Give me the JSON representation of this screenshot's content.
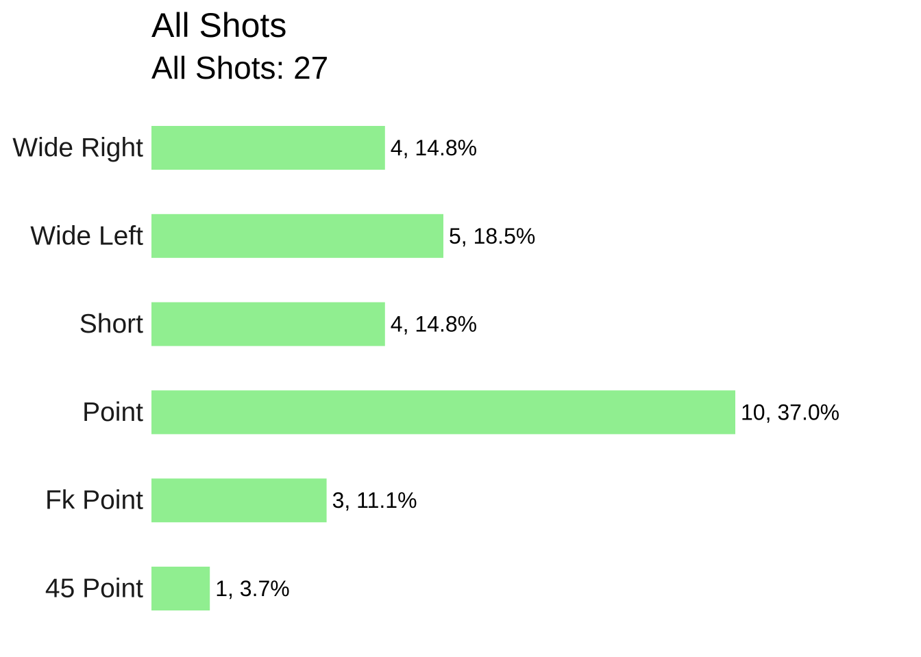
{
  "chart_data": {
    "type": "bar",
    "orientation": "horizontal",
    "title": "All Shots",
    "subtitle": "All Shots: 27",
    "xlabel": "",
    "ylabel": "",
    "grid": false,
    "axes_visible": false,
    "bar_color": "#90EE90",
    "categories": [
      "Wide Right",
      "Wide Left",
      "Short",
      "Point",
      "Fk Point",
      "45 Point"
    ],
    "values": [
      4,
      5,
      4,
      10,
      3,
      1
    ],
    "data_labels": [
      "4, 14.8%",
      "5, 18.5%",
      "4, 14.8%",
      "10, 37.0%",
      "3, 11.1%",
      "1, 3.7%"
    ],
    "xlim": [
      0,
      10
    ]
  }
}
